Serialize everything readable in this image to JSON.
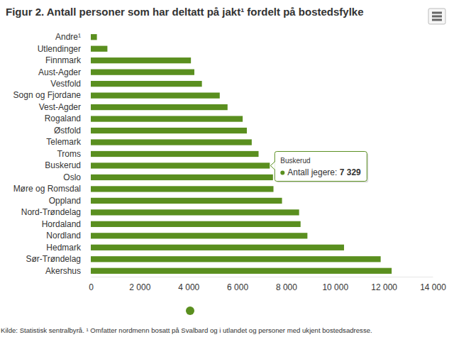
{
  "chart_data": {
    "type": "bar",
    "orientation": "horizontal",
    "title": "Figur 2. Antall personer som har deltatt på jakt¹ fordelt på bostedsfylke",
    "source": "Kilde: Statistisk sentralbyrå. ¹ Omfatter nordmenn bosatt på Svalbard og i utlandet og personer med ukjent bostedsadresse.",
    "categories": [
      "Andre¹",
      "Utlendinger",
      "Finnmark",
      "Aust-Agder",
      "Vestfold",
      "Sogn og Fjordane",
      "Vest-Agder",
      "Rogaland",
      "Østfold",
      "Telemark",
      "Troms",
      "Buskerud",
      "Oslo",
      "Møre og Romsdal",
      "Oppland",
      "Nord-Trøndelag",
      "Hordaland",
      "Nordland",
      "Hedmark",
      "Sør-Trøndelag",
      "Akershus"
    ],
    "series": [
      {
        "name": "Antall jegere",
        "color": "#5a8f1f",
        "values": [
          250,
          680,
          4100,
          4240,
          4550,
          5280,
          5600,
          6220,
          6390,
          6590,
          6870,
          7329,
          7460,
          7480,
          7830,
          8530,
          8590,
          8870,
          10370,
          11870,
          12320
        ]
      }
    ],
    "xlim": [
      0,
      14000
    ],
    "xticks": [
      0,
      {
        "value": 2000,
        "label": "2 000"
      },
      {
        "value": 4000,
        "label": "4 000"
      },
      {
        "value": 6000,
        "label": "6 000"
      },
      {
        "value": 8000,
        "label": "8 000"
      },
      {
        "value": 10000,
        "label": "10 000"
      },
      {
        "value": 12000,
        "label": "12 000"
      },
      {
        "value": 14000,
        "label": "14 000"
      }
    ],
    "grid": false,
    "legend": "bottom",
    "tooltip": {
      "title": "Buskerud",
      "label": "Antall jegere: ",
      "value_label": "7 329"
    }
  }
}
